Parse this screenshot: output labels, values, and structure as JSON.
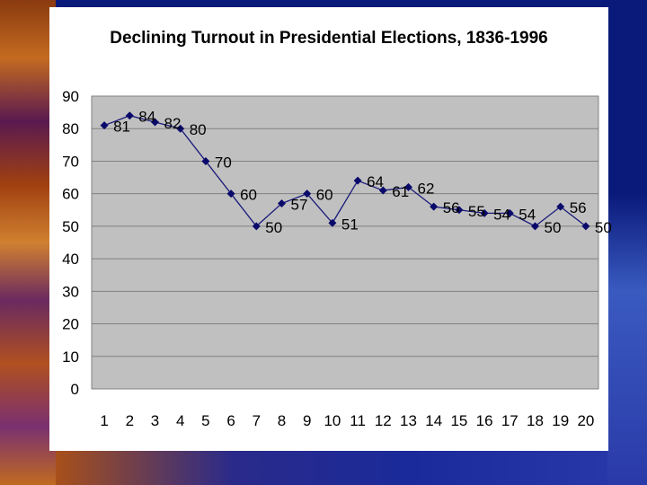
{
  "chart_data": {
    "type": "line",
    "title": "Declining Turnout in Presidential Elections, 1836-1996",
    "xlabel": "",
    "ylabel": "",
    "categories": [
      "1",
      "2",
      "3",
      "4",
      "5",
      "6",
      "7",
      "8",
      "9",
      "10",
      "11",
      "12",
      "13",
      "14",
      "15",
      "16",
      "17",
      "18",
      "19",
      "20"
    ],
    "values": [
      81,
      84,
      82,
      80,
      70,
      60,
      50,
      57,
      60,
      51,
      64,
      61,
      62,
      56,
      55,
      54,
      54,
      50,
      56,
      50
    ],
    "ylim": [
      0,
      90
    ],
    "yticks": [
      "0",
      "10",
      "20",
      "30",
      "40",
      "50",
      "60",
      "70",
      "80",
      "90"
    ],
    "grid": true,
    "colors": {
      "plot_background": "#c0c0c0",
      "line": "#1a1a7a",
      "marker": "#0a0a6a",
      "grid": "#808080"
    }
  }
}
